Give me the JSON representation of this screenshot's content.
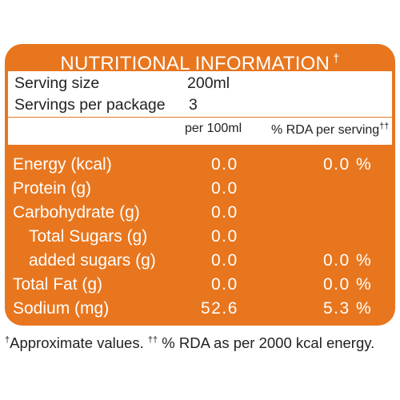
{
  "title": {
    "text": "NUTRITIONAL INFORMATION",
    "mark": "†"
  },
  "serving": {
    "size_label": "Serving size",
    "size_value": "200ml",
    "per_package_label": "Servings per package",
    "per_package_value": "3"
  },
  "columns": {
    "per100": "per 100ml",
    "rda": "% RDA per serving",
    "rda_mark": "††"
  },
  "rows": [
    {
      "name": "Energy (kcal)",
      "per100": "0.0",
      "rda": "0.0 %"
    },
    {
      "name": "Protein (g)",
      "per100": "0.0",
      "rda": ""
    },
    {
      "name": "Carbohydrate (g)",
      "per100": "0.0",
      "rda": ""
    },
    {
      "name": "Total Sugars (g)",
      "per100": "0.0",
      "rda": ""
    },
    {
      "name": "added sugars (g)",
      "per100": "0.0",
      "rda": "0.0 %"
    },
    {
      "name": "Total Fat (g)",
      "per100": "0.0",
      "rda": "0.0 %"
    },
    {
      "name": "Sodium (mg)",
      "per100": "52.6",
      "rda": "5.3 %"
    }
  ],
  "footnote": {
    "mark1": "†",
    "text1": "Approximate values. ",
    "mark2": "††",
    "text2": " % RDA as per 2000 kcal energy."
  },
  "colors": {
    "panel": "#E8761E",
    "text_on_panel": "#FFFFFF",
    "text_dark": "#222222"
  }
}
